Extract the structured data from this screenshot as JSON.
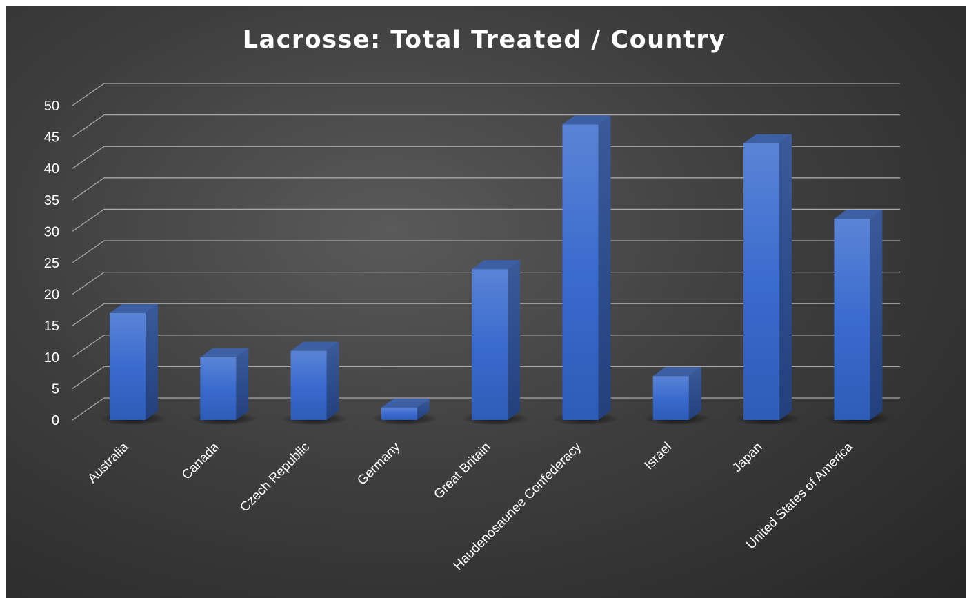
{
  "chart_data": {
    "type": "bar",
    "title": "Lacrosse: Total Treated / Country",
    "categories": [
      "Australia",
      "Canada",
      "Czech Republic",
      "Germany",
      "Great Britain",
      "Haudenosaunee Confederacy",
      "Israel",
      "Japan",
      "United States of America"
    ],
    "values": [
      17,
      10,
      11,
      2,
      24,
      47,
      7,
      44,
      32
    ],
    "yticks": [
      0,
      5,
      10,
      15,
      20,
      25,
      30,
      35,
      40,
      45,
      50
    ],
    "ylim": [
      0,
      50
    ],
    "grid": true,
    "legend": "none",
    "style": "3d-column",
    "bar_color": "#3a6bc9"
  }
}
